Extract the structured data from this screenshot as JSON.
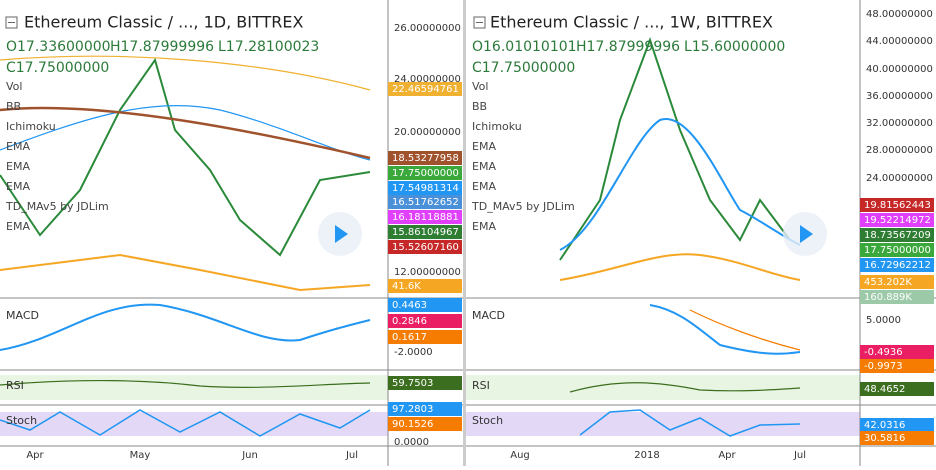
{
  "panels": [
    {
      "title": "Ethereum Classic / ..., 1D, BITTREX",
      "ohlc": [
        "O17.33600000",
        "H17.87999996",
        "L17.28100023",
        "C17.75000000"
      ],
      "indicators": [
        "Vol",
        "BB",
        "Ichimoku",
        "EMA",
        "EMA",
        "EMA",
        "TD_MAv5 by JDLim",
        "EMA"
      ],
      "axis_labels": [
        "26.00000000",
        "24.00000000",
        "20.00000000",
        "12.00000000",
        "-2.0000",
        "0.0000"
      ],
      "badges": [
        {
          "text": "22.46594761",
          "color": "#f0b030"
        },
        {
          "text": "18.53277958",
          "color": "#a0522d"
        },
        {
          "text": "17.75000000",
          "color": "#3aa83a"
        },
        {
          "text": "17.54981314",
          "color": "#2196f3"
        },
        {
          "text": "16.51762652",
          "color": "#4a90d9"
        },
        {
          "text": "16.18118881",
          "color": "#e040fb"
        },
        {
          "text": "15.86104967",
          "color": "#2e7d32"
        },
        {
          "text": "15.52607160",
          "color": "#c62828"
        },
        {
          "text": "41.6K",
          "color": "#f5a623"
        },
        {
          "text": "0.4463",
          "color": "#2196f3"
        },
        {
          "text": "0.2846",
          "color": "#e91e63"
        },
        {
          "text": "0.1617",
          "color": "#f57c00"
        },
        {
          "text": "59.7503",
          "color": "#3c6e1f"
        },
        {
          "text": "97.2803",
          "color": "#2196f3"
        },
        {
          "text": "90.1526",
          "color": "#f57c00"
        }
      ],
      "sub_labels": [
        "MACD",
        "RSI",
        "Stoch"
      ],
      "dates": [
        "Apr",
        "May",
        "Jun",
        "Jul"
      ]
    },
    {
      "title": "Ethereum Classic / ..., 1W, BITTREX",
      "ohlc": [
        "O16.01010101",
        "H17.87999996",
        "L15.60000000",
        "C17.75000000"
      ],
      "indicators": [
        "Vol",
        "BB",
        "Ichimoku",
        "EMA",
        "EMA",
        "EMA",
        "TD_MAv5 by JDLim",
        "EMA"
      ],
      "axis_labels": [
        "48.00000000",
        "44.00000000",
        "40.00000000",
        "36.00000000",
        "32.00000000",
        "28.00000000",
        "24.00000000",
        "5.0000"
      ],
      "badges": [
        {
          "text": "19.81562443",
          "color": "#c62828"
        },
        {
          "text": "19.52214972",
          "color": "#e040fb"
        },
        {
          "text": "18.73567209",
          "color": "#2e7d32"
        },
        {
          "text": "17.75000000",
          "color": "#3aa83a"
        },
        {
          "text": "16.72962212",
          "color": "#2196f3"
        },
        {
          "text": "453.202K",
          "color": "#f5a623"
        },
        {
          "text": "160.889K",
          "color": "#9cc9a8"
        },
        {
          "text": "-0.4936",
          "color": "#e91e63"
        },
        {
          "text": "-0.9973",
          "color": "#f57c00"
        },
        {
          "text": "48.4652",
          "color": "#3c6e1f"
        },
        {
          "text": "42.0316",
          "color": "#2196f3"
        },
        {
          "text": "30.5816",
          "color": "#f57c00"
        }
      ],
      "sub_labels": [
        "MACD",
        "RSI",
        "Stoch"
      ],
      "dates": [
        "Aug",
        "2018",
        "Apr",
        "Jul"
      ]
    }
  ]
}
